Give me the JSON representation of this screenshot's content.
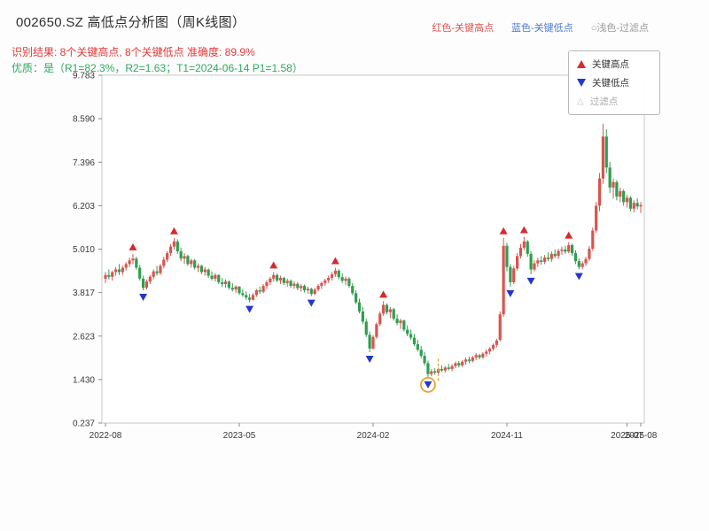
{
  "header": {
    "title": "002650.SZ 高低点分析图（周K线图）",
    "legend_red": "红色-关键高点",
    "legend_blue": "蓝色-关键低点",
    "legend_gray": "○浅色-过滤点",
    "result_line": "识别结果: 8个关键高点, 8个关键低点   准确度: 89.9%",
    "quality_line": "优质：是（R1=82.3%，R2=1.63；T1=2024-06-14 P1=1.58）"
  },
  "legend_box": {
    "items": [
      {
        "label": "关键高点"
      },
      {
        "label": "关键低点"
      },
      {
        "label": "过滤点"
      }
    ]
  },
  "chart_data": {
    "type": "candlestick",
    "title": "002650.SZ 高低点分析图（周K线图）",
    "frequency": "weekly",
    "ylim": [
      0.237,
      9.783
    ],
    "y_ticks": [
      9.783,
      8.59,
      7.396,
      6.203,
      5.01,
      3.817,
      2.623,
      1.43,
      0.237
    ],
    "x_ticks": [
      {
        "i": 0,
        "label": "2022-08"
      },
      {
        "i": 39,
        "label": "2023-05"
      },
      {
        "i": 78,
        "label": "2024-02"
      },
      {
        "i": 117,
        "label": "2024-11"
      },
      {
        "i": 152,
        "label": "2025-07"
      },
      {
        "i": 156,
        "label": "2025-08"
      }
    ],
    "candles": [
      [
        4.2,
        4.38,
        4.08,
        4.3
      ],
      [
        4.3,
        4.45,
        4.18,
        4.25
      ],
      [
        4.25,
        4.42,
        4.15,
        4.38
      ],
      [
        4.38,
        4.52,
        4.28,
        4.45
      ],
      [
        4.45,
        4.6,
        4.3,
        4.38
      ],
      [
        4.38,
        4.55,
        4.3,
        4.5
      ],
      [
        4.5,
        4.65,
        4.42,
        4.6
      ],
      [
        4.6,
        4.78,
        4.52,
        4.7
      ],
      [
        4.7,
        4.88,
        4.6,
        4.75
      ],
      [
        4.75,
        4.8,
        4.45,
        4.5
      ],
      [
        4.5,
        4.58,
        4.15,
        4.2
      ],
      [
        4.2,
        4.28,
        3.88,
        3.95
      ],
      [
        3.95,
        4.18,
        3.9,
        4.12
      ],
      [
        4.12,
        4.3,
        4.05,
        4.25
      ],
      [
        4.25,
        4.45,
        4.18,
        4.4
      ],
      [
        4.4,
        4.55,
        4.28,
        4.35
      ],
      [
        4.35,
        4.6,
        4.3,
        4.55
      ],
      [
        4.55,
        4.8,
        4.48,
        4.72
      ],
      [
        4.72,
        4.95,
        4.65,
        4.9
      ],
      [
        4.9,
        5.15,
        4.82,
        5.08
      ],
      [
        5.08,
        5.32,
        5.0,
        5.22
      ],
      [
        5.22,
        5.28,
        4.88,
        4.95
      ],
      [
        4.95,
        5.05,
        4.68,
        4.75
      ],
      [
        4.75,
        4.9,
        4.6,
        4.82
      ],
      [
        4.82,
        4.86,
        4.55,
        4.6
      ],
      [
        4.6,
        4.75,
        4.5,
        4.7
      ],
      [
        4.7,
        4.74,
        4.45,
        4.5
      ],
      [
        4.5,
        4.62,
        4.38,
        4.55
      ],
      [
        4.55,
        4.58,
        4.32,
        4.38
      ],
      [
        4.38,
        4.52,
        4.28,
        4.45
      ],
      [
        4.45,
        4.48,
        4.22,
        4.28
      ],
      [
        4.28,
        4.4,
        4.15,
        4.2
      ],
      [
        4.2,
        4.35,
        4.12,
        4.3
      ],
      [
        4.3,
        4.32,
        4.05,
        4.1
      ],
      [
        4.1,
        4.22,
        3.98,
        4.05
      ],
      [
        4.05,
        4.18,
        3.95,
        4.12
      ],
      [
        4.12,
        4.15,
        3.9,
        3.95
      ],
      [
        3.95,
        4.08,
        3.85,
        3.9
      ],
      [
        3.9,
        4.02,
        3.8,
        3.98
      ],
      [
        3.98,
        4.0,
        3.75,
        3.8
      ],
      [
        3.8,
        3.92,
        3.7,
        3.75
      ],
      [
        3.75,
        3.85,
        3.62,
        3.68
      ],
      [
        3.68,
        3.78,
        3.55,
        3.62
      ],
      [
        3.62,
        3.8,
        3.6,
        3.75
      ],
      [
        3.75,
        3.92,
        3.7,
        3.88
      ],
      [
        3.88,
        3.98,
        3.78,
        3.84
      ],
      [
        3.84,
        4.05,
        3.8,
        4.0
      ],
      [
        4.0,
        4.15,
        3.92,
        4.1
      ],
      [
        4.1,
        4.25,
        4.02,
        4.2
      ],
      [
        4.2,
        4.38,
        4.12,
        4.3
      ],
      [
        4.3,
        4.34,
        4.1,
        4.15
      ],
      [
        4.15,
        4.28,
        4.05,
        4.22
      ],
      [
        4.22,
        4.25,
        4.02,
        4.08
      ],
      [
        4.08,
        4.2,
        3.98,
        4.14
      ],
      [
        4.14,
        4.18,
        3.95,
        4.0
      ],
      [
        4.0,
        4.12,
        3.92,
        4.06
      ],
      [
        4.06,
        4.1,
        3.88,
        3.94
      ],
      [
        3.94,
        4.05,
        3.85,
        4.0
      ],
      [
        4.0,
        4.04,
        3.82,
        3.88
      ],
      [
        3.88,
        3.98,
        3.78,
        3.92
      ],
      [
        3.92,
        3.95,
        3.72,
        3.78
      ],
      [
        3.78,
        3.95,
        3.75,
        3.9
      ],
      [
        3.9,
        4.05,
        3.85,
        4.0
      ],
      [
        4.0,
        4.12,
        3.92,
        4.08
      ],
      [
        4.08,
        4.2,
        4.0,
        4.15
      ],
      [
        4.15,
        4.28,
        4.08,
        4.22
      ],
      [
        4.22,
        4.38,
        4.15,
        4.32
      ],
      [
        4.32,
        4.5,
        4.25,
        4.42
      ],
      [
        4.42,
        4.46,
        4.18,
        4.24
      ],
      [
        4.24,
        4.35,
        4.08,
        4.14
      ],
      [
        4.14,
        4.26,
        4.02,
        4.2
      ],
      [
        4.2,
        4.24,
        3.95,
        4.0
      ],
      [
        4.0,
        4.08,
        3.75,
        3.8
      ],
      [
        3.8,
        3.88,
        3.5,
        3.55
      ],
      [
        3.55,
        3.65,
        3.25,
        3.3
      ],
      [
        3.3,
        3.42,
        2.95,
        3.02
      ],
      [
        3.02,
        3.1,
        2.6,
        2.66
      ],
      [
        2.66,
        2.75,
        2.18,
        2.28
      ],
      [
        2.28,
        2.65,
        2.25,
        2.6
      ],
      [
        2.6,
        3.0,
        2.55,
        2.95
      ],
      [
        2.95,
        3.3,
        2.9,
        3.24
      ],
      [
        3.24,
        3.58,
        3.18,
        3.48
      ],
      [
        3.48,
        3.52,
        3.22,
        3.28
      ],
      [
        3.28,
        3.42,
        3.12,
        3.36
      ],
      [
        3.36,
        3.4,
        3.05,
        3.1
      ],
      [
        3.1,
        3.22,
        2.92,
        2.98
      ],
      [
        2.98,
        3.1,
        2.82,
        3.05
      ],
      [
        3.05,
        3.08,
        2.75,
        2.8
      ],
      [
        2.8,
        2.92,
        2.62,
        2.68
      ],
      [
        2.68,
        2.8,
        2.52,
        2.58
      ],
      [
        2.58,
        2.68,
        2.35,
        2.4
      ],
      [
        2.4,
        2.52,
        2.2,
        2.25
      ],
      [
        2.25,
        2.35,
        2.02,
        2.08
      ],
      [
        2.08,
        2.18,
        1.82,
        1.88
      ],
      [
        1.88,
        1.95,
        1.48,
        1.58
      ],
      [
        1.58,
        1.72,
        1.52,
        1.66
      ],
      [
        1.66,
        1.74,
        1.56,
        1.62
      ],
      [
        1.62,
        1.76,
        1.58,
        1.72
      ],
      [
        1.72,
        1.82,
        1.64,
        1.68
      ],
      [
        1.68,
        1.8,
        1.62,
        1.76
      ],
      [
        1.76,
        1.86,
        1.68,
        1.72
      ],
      [
        1.72,
        1.85,
        1.66,
        1.8
      ],
      [
        1.8,
        1.92,
        1.74,
        1.88
      ],
      [
        1.88,
        1.94,
        1.76,
        1.82
      ],
      [
        1.82,
        1.96,
        1.78,
        1.92
      ],
      [
        1.92,
        2.04,
        1.84,
        1.98
      ],
      [
        1.98,
        2.06,
        1.88,
        1.94
      ],
      [
        1.94,
        2.08,
        1.9,
        2.04
      ],
      [
        2.04,
        2.16,
        1.96,
        2.1
      ],
      [
        2.1,
        2.14,
        1.98,
        2.04
      ],
      [
        2.04,
        2.18,
        2.0,
        2.14
      ],
      [
        2.14,
        2.26,
        2.06,
        2.2
      ],
      [
        2.2,
        2.32,
        2.12,
        2.28
      ],
      [
        2.28,
        2.42,
        2.22,
        2.38
      ],
      [
        2.38,
        2.55,
        2.32,
        2.5
      ],
      [
        2.52,
        3.3,
        2.48,
        3.22
      ],
      [
        3.22,
        5.32,
        3.15,
        5.1
      ],
      [
        5.1,
        5.18,
        4.4,
        4.52
      ],
      [
        4.52,
        4.6,
        3.98,
        4.1
      ],
      [
        4.1,
        4.55,
        4.05,
        4.48
      ],
      [
        4.48,
        4.9,
        4.42,
        4.82
      ],
      [
        4.82,
        5.15,
        4.75,
        5.05
      ],
      [
        5.05,
        5.35,
        4.98,
        5.22
      ],
      [
        5.22,
        5.26,
        4.8,
        4.88
      ],
      [
        4.88,
        4.95,
        4.32,
        4.45
      ],
      [
        4.45,
        4.7,
        4.4,
        4.62
      ],
      [
        4.62,
        4.78,
        4.52,
        4.7
      ],
      [
        4.7,
        4.82,
        4.58,
        4.66
      ],
      [
        4.66,
        4.85,
        4.6,
        4.78
      ],
      [
        4.78,
        4.92,
        4.68,
        4.74
      ],
      [
        4.74,
        4.95,
        4.66,
        4.88
      ],
      [
        4.88,
        5.0,
        4.76,
        4.82
      ],
      [
        4.82,
        5.02,
        4.74,
        4.96
      ],
      [
        4.96,
        5.08,
        4.85,
        5.0
      ],
      [
        5.0,
        5.1,
        4.88,
        4.94
      ],
      [
        4.94,
        5.2,
        4.9,
        5.12
      ],
      [
        5.12,
        5.16,
        4.82,
        4.9
      ],
      [
        4.9,
        4.98,
        4.6,
        4.68
      ],
      [
        4.68,
        4.76,
        4.45,
        4.52
      ],
      [
        4.52,
        4.68,
        4.46,
        4.62
      ],
      [
        4.62,
        4.8,
        4.55,
        4.74
      ],
      [
        4.74,
        5.1,
        4.68,
        5.02
      ],
      [
        5.02,
        5.6,
        4.96,
        5.52
      ],
      [
        5.52,
        6.3,
        5.45,
        6.2
      ],
      [
        6.2,
        7.1,
        6.05,
        6.95
      ],
      [
        6.95,
        8.45,
        6.8,
        8.1
      ],
      [
        8.1,
        8.3,
        7.1,
        7.25
      ],
      [
        7.25,
        7.4,
        6.55,
        6.7
      ],
      [
        6.7,
        6.95,
        6.4,
        6.85
      ],
      [
        6.85,
        6.9,
        6.35,
        6.45
      ],
      [
        6.45,
        6.7,
        6.3,
        6.6
      ],
      [
        6.6,
        6.65,
        6.2,
        6.3
      ],
      [
        6.3,
        6.5,
        6.15,
        6.42
      ],
      [
        6.42,
        6.46,
        6.05,
        6.12
      ],
      [
        6.12,
        6.35,
        6.02,
        6.28
      ],
      [
        6.28,
        6.4,
        6.1,
        6.18
      ],
      [
        6.18,
        6.3,
        6.0,
        6.22
      ]
    ],
    "key_highs": [
      {
        "i": 8,
        "v": 4.88
      },
      {
        "i": 20,
        "v": 5.32
      },
      {
        "i": 49,
        "v": 4.38
      },
      {
        "i": 67,
        "v": 4.5
      },
      {
        "i": 81,
        "v": 3.58
      },
      {
        "i": 116,
        "v": 5.32
      },
      {
        "i": 122,
        "v": 5.35
      },
      {
        "i": 135,
        "v": 5.2
      }
    ],
    "key_lows": [
      {
        "i": 11,
        "v": 3.88
      },
      {
        "i": 42,
        "v": 3.55
      },
      {
        "i": 60,
        "v": 3.72
      },
      {
        "i": 77,
        "v": 2.18
      },
      {
        "i": 94,
        "v": 1.48
      },
      {
        "i": 118,
        "v": 3.98
      },
      {
        "i": 124,
        "v": 4.32
      },
      {
        "i": 138,
        "v": 4.45
      }
    ],
    "filter_point": {
      "i": 94,
      "v": 1.48
    },
    "t1_dash": {
      "i": 97,
      "from": 1.35,
      "to": 2.0
    },
    "colors": {
      "up": "#d9544f",
      "down": "#2f9e4e",
      "key_high": "#d62b2b",
      "key_low": "#2438c8",
      "filter": "#f0a22e",
      "spine": "#c8c8c8",
      "tick_text": "#3a3a3a"
    },
    "legend_position": "upper-right",
    "grid": false
  }
}
